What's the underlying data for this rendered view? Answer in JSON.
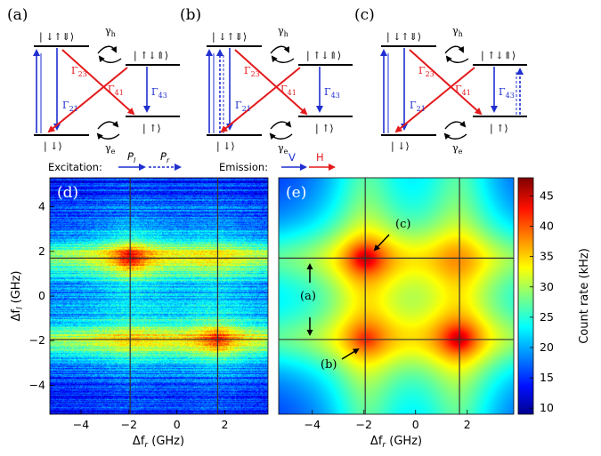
{
  "panels": [
    {
      "id": "a",
      "label": "(a)",
      "kind": "V"
    },
    {
      "id": "b",
      "label": "(b)",
      "kind": "VV"
    },
    {
      "id": "c",
      "label": "(c)",
      "kind": "VR"
    }
  ],
  "levels": {
    "top_left": "| ↓↑⇓⟩",
    "top_right": "| ↑↓⇑⟩",
    "bottom_left": "| ↓⟩",
    "bottom_right": "| ↑⟩"
  },
  "rates": {
    "g23": "Γ",
    "g23_sub": "23",
    "g21": "Γ",
    "g21_sub": "21",
    "g41": "Γ",
    "g41_sub": "41",
    "g43": "Γ",
    "g43_sub": "43",
    "gh": "γ",
    "gh_sub": "h",
    "ge": "γ",
    "ge_sub": "e"
  },
  "legend": {
    "excitation_label": "Excitation:",
    "p_l": "P",
    "p_l_sub": "l",
    "p_r": "P",
    "p_r_sub": "r",
    "emission_label": "Emission:",
    "v": "V",
    "h": "H"
  },
  "colors": {
    "red": "#e41a1c",
    "blue": "#1f2fd0"
  },
  "chart_data": [
    {
      "type": "heatmap",
      "panel_label": "(d)",
      "xlabel": "Δf",
      "xlabel_sub": "r",
      "xlabel_unit": " (GHz)",
      "ylabel": "Δf",
      "ylabel_sub": "l",
      "ylabel_unit": " (GHz)",
      "xlim": [
        -5.3,
        3.8
      ],
      "ylim": [
        -5.3,
        5.3
      ],
      "xticks": [
        -4,
        -2,
        0,
        2
      ],
      "yticks": [
        -4,
        -2,
        0,
        2,
        4
      ],
      "crosshair_x": [
        -1.95,
        1.7
      ],
      "crosshair_y": [
        1.7,
        -1.95
      ]
    },
    {
      "type": "heatmap",
      "panel_label": "(e)",
      "xlabel": "Δf",
      "xlabel_sub": "r",
      "xlabel_unit": " (GHz)",
      "xlim": [
        -5.3,
        3.8
      ],
      "ylim": [
        -5.3,
        5.3
      ],
      "xticks": [
        -4,
        -2,
        0,
        2
      ],
      "crosshair_x": [
        -1.95,
        1.7
      ],
      "crosshair_y": [
        1.7,
        -1.95
      ],
      "annotations": [
        "(c)",
        "(a)",
        "(b)"
      ],
      "colorbar": {
        "label": "Count rate (kHz)",
        "min": 9,
        "max": 48,
        "ticks": [
          10,
          15,
          20,
          25,
          30,
          35,
          40,
          45
        ]
      }
    }
  ]
}
